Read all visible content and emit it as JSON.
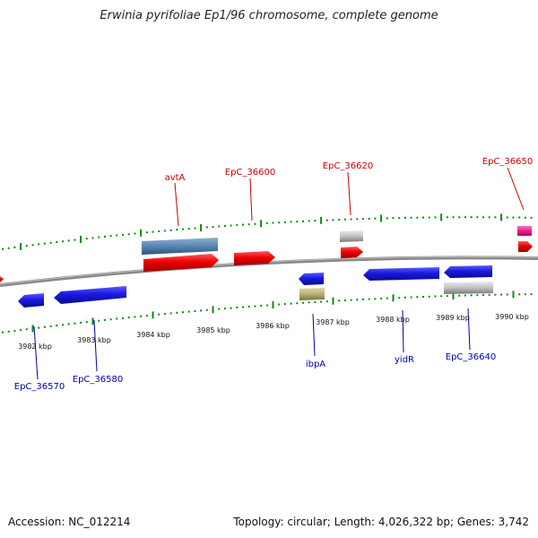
{
  "title": "Erwinia pyrifoliae Ep1/96 chromosome, complete genome",
  "footer": {
    "accession": "Accession: NC_012214",
    "topology": "Topology: circular; Length: 4,026,322 bp; Genes: 3,742"
  },
  "colors": {
    "forward_gene": "#ee0000",
    "reverse_gene": "#1a1ae0",
    "rna": "#5a86b4",
    "pseudo": "#c0c0c0",
    "ibpA_support": "#b8b078",
    "misc_feature": "#e8208c",
    "tick": "#118811",
    "backbone": "#8a8a8a",
    "label_forward": "#cc0000",
    "label_reverse": "#0000aa"
  },
  "scale": {
    "ticks": [
      "3982 kbp",
      "3983 kbp",
      "3984 kbp",
      "3985 kbp",
      "3986 kbp",
      "3987 kbp",
      "3988 kbp",
      "3989 kbp",
      "3990 kbp"
    ]
  },
  "gene_labels": {
    "top": [
      "avtA",
      "EpC_36600",
      "EpC_36620",
      "EpC_36650"
    ],
    "bottom": [
      "EpC_36570",
      "EpC_36580",
      "ibpA",
      "yidR",
      "EpC_36640"
    ]
  }
}
